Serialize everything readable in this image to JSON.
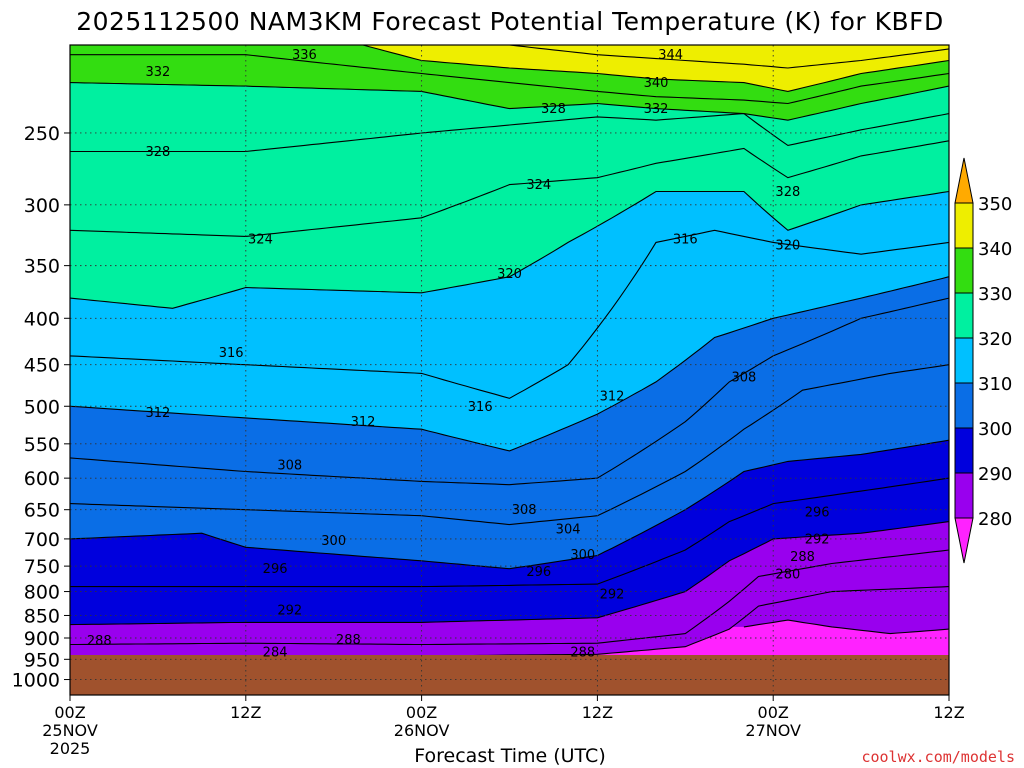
{
  "chart_data": {
    "type": "heatmap",
    "title": "2025112500 NAM3KM Forecast Potential Temperature (K) for KBFD",
    "xlabel": "Forecast Time (UTC)",
    "ylabel": "",
    "y_scale": "log",
    "y_inverted": true,
    "ylim": [
      200,
      1040
    ],
    "y_ticks": [
      250,
      300,
      350,
      400,
      450,
      500,
      550,
      600,
      650,
      700,
      750,
      800,
      850,
      900,
      950,
      1000
    ],
    "x_ticks": [
      {
        "hour": 0,
        "label": "00Z",
        "sub": "25NOV",
        "sub2": "2025"
      },
      {
        "hour": 12,
        "label": "12Z",
        "sub": "",
        "sub2": ""
      },
      {
        "hour": 24,
        "label": "00Z",
        "sub": "26NOV",
        "sub2": ""
      },
      {
        "hour": 36,
        "label": "12Z",
        "sub": "",
        "sub2": ""
      },
      {
        "hour": 48,
        "label": "00Z",
        "sub": "27NOV",
        "sub2": ""
      },
      {
        "hour": 60,
        "label": "12Z",
        "sub": "",
        "sub2": ""
      }
    ],
    "xlim": [
      0,
      60
    ],
    "colorbar": {
      "levels": [
        280,
        290,
        300,
        310,
        320,
        330,
        340,
        350
      ],
      "colors": [
        "#9900ee",
        "#0000dd",
        "#0a6ee6",
        "#00c0ff",
        "#00f0a0",
        "#33dd11",
        "#eeee00"
      ],
      "below_color": "#ff22ff",
      "above_color": "#ffaa00"
    },
    "series": [
      {
        "name": "280",
        "values": [
          [
            46,
            875
          ],
          [
            49,
            860
          ],
          [
            52,
            875
          ],
          [
            56,
            890
          ],
          [
            60,
            880
          ]
        ]
      },
      {
        "name": "284",
        "values": [
          [
            0,
            945
          ],
          [
            12,
            945
          ],
          [
            24,
            942
          ],
          [
            36,
            938
          ],
          [
            42,
            920
          ],
          [
            45,
            880
          ],
          [
            47,
            830
          ],
          [
            52,
            800
          ],
          [
            60,
            790
          ]
        ]
      },
      {
        "name": "288",
        "values": [
          [
            0,
            915
          ],
          [
            12,
            912
          ],
          [
            24,
            915
          ],
          [
            36,
            912
          ],
          [
            42,
            890
          ],
          [
            45,
            820
          ],
          [
            47,
            770
          ],
          [
            52,
            745
          ],
          [
            60,
            720
          ]
        ]
      },
      {
        "name": "292",
        "values": [
          [
            0,
            870
          ],
          [
            12,
            865
          ],
          [
            24,
            865
          ],
          [
            36,
            855
          ],
          [
            42,
            800
          ],
          [
            45,
            740
          ],
          [
            48,
            700
          ],
          [
            54,
            690
          ],
          [
            60,
            670
          ]
        ]
      },
      {
        "name": "296",
        "values": [
          [
            0,
            790
          ],
          [
            12,
            790
          ],
          [
            24,
            790
          ],
          [
            36,
            785
          ],
          [
            42,
            720
          ],
          [
            45,
            670
          ],
          [
            48,
            640
          ],
          [
            54,
            620
          ],
          [
            60,
            600
          ]
        ]
      },
      {
        "name": "300",
        "values": [
          [
            0,
            700
          ],
          [
            9,
            690
          ],
          [
            12,
            715
          ],
          [
            24,
            740
          ],
          [
            30,
            755
          ],
          [
            36,
            730
          ],
          [
            42,
            650
          ],
          [
            46,
            590
          ],
          [
            49,
            575
          ],
          [
            54,
            565
          ],
          [
            60,
            545
          ]
        ]
      },
      {
        "name": "304",
        "values": [
          [
            0,
            640
          ],
          [
            12,
            650
          ],
          [
            24,
            660
          ],
          [
            30,
            675
          ],
          [
            36,
            660
          ],
          [
            42,
            590
          ],
          [
            46,
            530
          ],
          [
            50,
            480
          ],
          [
            56,
            460
          ],
          [
            60,
            450
          ]
        ]
      },
      {
        "name": "308",
        "values": [
          [
            0,
            570
          ],
          [
            12,
            590
          ],
          [
            24,
            605
          ],
          [
            30,
            610
          ],
          [
            36,
            600
          ],
          [
            42,
            520
          ],
          [
            45,
            470
          ],
          [
            48,
            440
          ],
          [
            54,
            400
          ],
          [
            60,
            380
          ]
        ]
      },
      {
        "name": "312",
        "values": [
          [
            0,
            500
          ],
          [
            12,
            515
          ],
          [
            24,
            530
          ],
          [
            30,
            560
          ],
          [
            36,
            510
          ],
          [
            40,
            470
          ],
          [
            44,
            420
          ],
          [
            48,
            400
          ],
          [
            54,
            380
          ],
          [
            60,
            360
          ]
        ]
      },
      {
        "name": "316",
        "values": [
          [
            0,
            440
          ],
          [
            12,
            450
          ],
          [
            24,
            460
          ],
          [
            30,
            490
          ],
          [
            34,
            450
          ],
          [
            40,
            330
          ],
          [
            44,
            320
          ],
          [
            48,
            330
          ],
          [
            54,
            340
          ],
          [
            60,
            330
          ]
        ]
      },
      {
        "name": "320",
        "values": [
          [
            0,
            380
          ],
          [
            7,
            390
          ],
          [
            12,
            370
          ],
          [
            24,
            375
          ],
          [
            30,
            360
          ],
          [
            34,
            330
          ],
          [
            40,
            290
          ],
          [
            46,
            290
          ],
          [
            49,
            320
          ],
          [
            54,
            300
          ],
          [
            60,
            290
          ]
        ]
      },
      {
        "name": "324",
        "values": [
          [
            0,
            320
          ],
          [
            12,
            325
          ],
          [
            24,
            310
          ],
          [
            30,
            285
          ],
          [
            36,
            280
          ],
          [
            40,
            270
          ],
          [
            46,
            260
          ],
          [
            49,
            280
          ],
          [
            54,
            265
          ],
          [
            60,
            255
          ]
        ]
      },
      {
        "name": "328",
        "values": [
          [
            0,
            262
          ],
          [
            12,
            262
          ],
          [
            24,
            250
          ],
          [
            30,
            245
          ],
          [
            36,
            240
          ],
          [
            40,
            242
          ],
          [
            46,
            238
          ],
          [
            49,
            258
          ],
          [
            54,
            248
          ],
          [
            60,
            238
          ]
        ]
      },
      {
        "name": "332",
        "values": [
          [
            0,
            220
          ],
          [
            12,
            222
          ],
          [
            24,
            225
          ],
          [
            30,
            235
          ],
          [
            36,
            232
          ],
          [
            40,
            235
          ],
          [
            46,
            238
          ],
          [
            49,
            242
          ],
          [
            54,
            232
          ],
          [
            60,
            222
          ]
        ]
      },
      {
        "name": "336",
        "values": [
          [
            0,
            205
          ],
          [
            12,
            205
          ],
          [
            24,
            215
          ],
          [
            30,
            220
          ],
          [
            36,
            225
          ],
          [
            40,
            228
          ],
          [
            46,
            230
          ],
          [
            49,
            232
          ],
          [
            54,
            222
          ],
          [
            60,
            215
          ]
        ]
      },
      {
        "name": "340",
        "values": [
          [
            20,
            200
          ],
          [
            24,
            208
          ],
          [
            30,
            212
          ],
          [
            36,
            215
          ],
          [
            40,
            218
          ],
          [
            46,
            220
          ],
          [
            49,
            225
          ],
          [
            54,
            215
          ],
          [
            60,
            208
          ]
        ]
      },
      {
        "name": "344",
        "values": [
          [
            30,
            200
          ],
          [
            36,
            205
          ],
          [
            40,
            207
          ],
          [
            46,
            210
          ],
          [
            49,
            212
          ],
          [
            54,
            208
          ],
          [
            60,
            202
          ]
        ]
      }
    ],
    "labels": [
      {
        "text": "336",
        "hour": 16,
        "p": 205
      },
      {
        "text": "344",
        "hour": 41,
        "p": 205
      },
      {
        "text": "332",
        "hour": 6,
        "p": 214
      },
      {
        "text": "340",
        "hour": 40,
        "p": 220
      },
      {
        "text": "328",
        "hour": 33,
        "p": 235
      },
      {
        "text": "332",
        "hour": 40,
        "p": 235
      },
      {
        "text": "328",
        "hour": 6,
        "p": 262
      },
      {
        "text": "324",
        "hour": 32,
        "p": 285
      },
      {
        "text": "328",
        "hour": 49,
        "p": 290
      },
      {
        "text": "324",
        "hour": 13,
        "p": 327
      },
      {
        "text": "316",
        "hour": 42,
        "p": 327
      },
      {
        "text": "320",
        "hour": 49,
        "p": 332
      },
      {
        "text": "320",
        "hour": 30,
        "p": 357
      },
      {
        "text": "316",
        "hour": 11,
        "p": 436
      },
      {
        "text": "308",
        "hour": 46,
        "p": 464
      },
      {
        "text": "312",
        "hour": 37,
        "p": 487
      },
      {
        "text": "316",
        "hour": 28,
        "p": 500
      },
      {
        "text": "312",
        "hour": 6,
        "p": 508
      },
      {
        "text": "312",
        "hour": 20,
        "p": 520
      },
      {
        "text": "308",
        "hour": 15,
        "p": 580
      },
      {
        "text": "308",
        "hour": 31,
        "p": 650
      },
      {
        "text": "296",
        "hour": 51,
        "p": 654
      },
      {
        "text": "304",
        "hour": 34,
        "p": 683
      },
      {
        "text": "292",
        "hour": 51,
        "p": 700
      },
      {
        "text": "300",
        "hour": 18,
        "p": 703
      },
      {
        "text": "300",
        "hour": 35,
        "p": 728
      },
      {
        "text": "288",
        "hour": 50,
        "p": 732
      },
      {
        "text": "296",
        "hour": 14,
        "p": 755
      },
      {
        "text": "296",
        "hour": 32,
        "p": 760
      },
      {
        "text": "280",
        "hour": 49,
        "p": 765
      },
      {
        "text": "292",
        "hour": 37,
        "p": 805
      },
      {
        "text": "292",
        "hour": 15,
        "p": 838
      },
      {
        "text": "288",
        "hour": 2,
        "p": 906
      },
      {
        "text": "288",
        "hour": 19,
        "p": 903
      },
      {
        "text": "284",
        "hour": 14,
        "p": 932
      },
      {
        "text": "288",
        "hour": 35,
        "p": 932
      }
    ]
  },
  "footer": {
    "source": "coolwx.com/models"
  },
  "theme": {
    "ground_color": "#a0522d",
    "background": "#ffffff",
    "text_color": "#000000",
    "source_color": "#dd3333"
  }
}
